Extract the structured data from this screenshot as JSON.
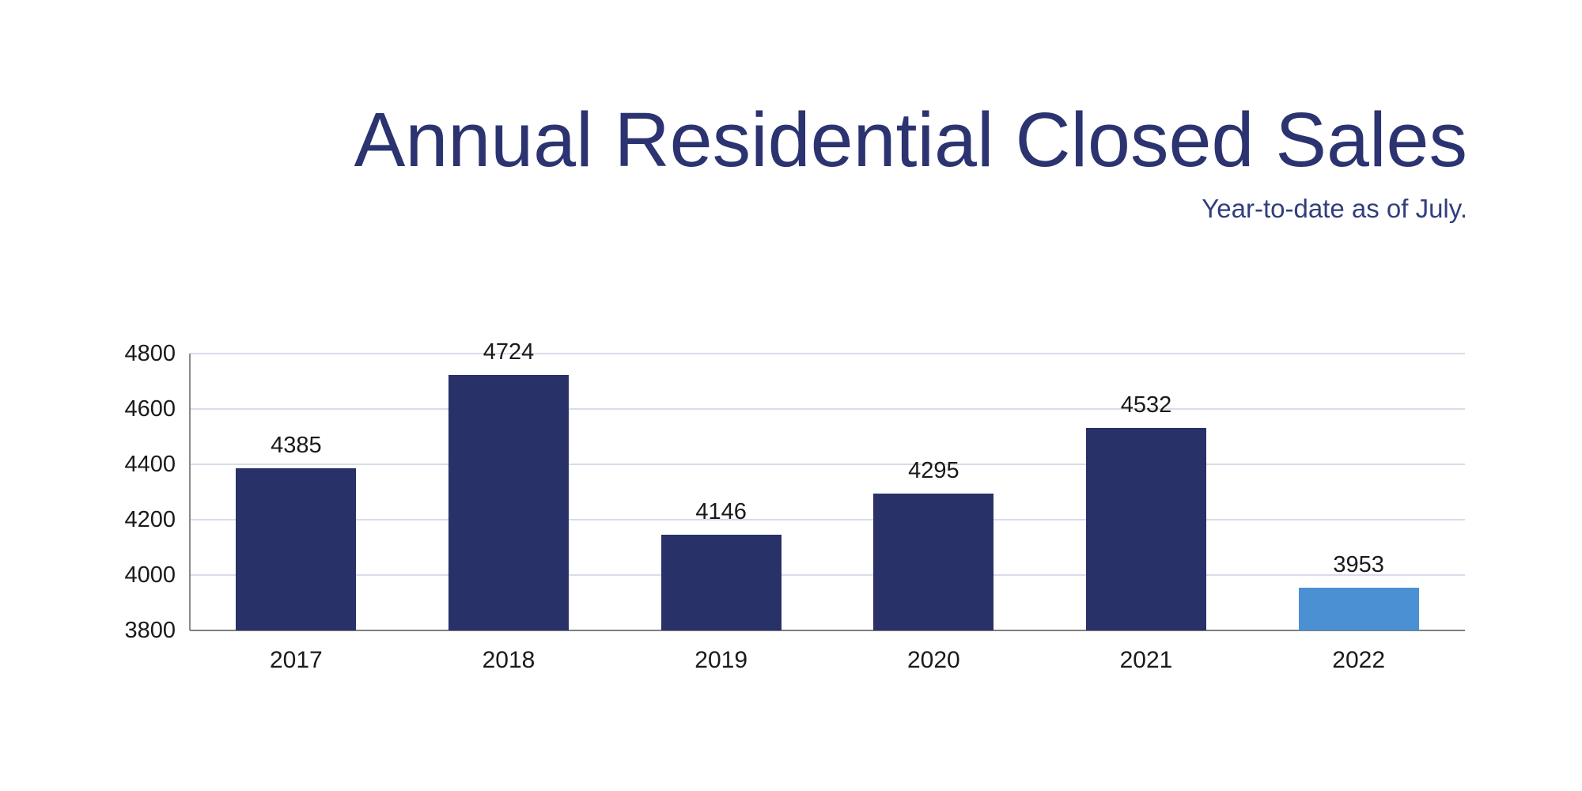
{
  "header": {
    "title": "Annual Residential Closed Sales",
    "subtitle": "Year-to-date as of July.",
    "title_color": "#2b3470",
    "subtitle_color": "#323e7c"
  },
  "chart_data": {
    "type": "bar",
    "title": "Annual Residential Closed Sales",
    "subtitle": "Year-to-date as of July.",
    "categories": [
      "2017",
      "2018",
      "2019",
      "2020",
      "2021",
      "2022"
    ],
    "values": [
      4385,
      4724,
      4146,
      4295,
      4532,
      3953
    ],
    "value_labels_shown": true,
    "xlabel": "",
    "ylabel": "",
    "ylim": [
      3800,
      4800
    ],
    "yticks": [
      3800,
      4000,
      4200,
      4400,
      4600,
      4800
    ],
    "grid": true,
    "legend": "none",
    "style": {
      "bar_color_default": "#293169",
      "bar_color_highlight": "#4a90d2",
      "highlight_category": "2022",
      "grid_color": "#d9dce9",
      "x_axis_color": "#7f7f7f",
      "y_axis_color": "#8a8a8a",
      "tick_label_color": "#1a1a1a"
    }
  }
}
